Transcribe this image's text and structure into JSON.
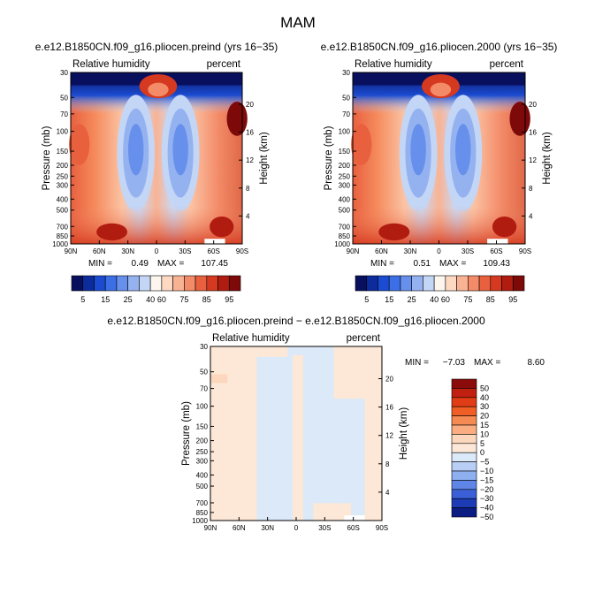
{
  "figure": {
    "title": "MAM"
  },
  "chart_data": [
    {
      "type": "heatmap",
      "title": "e.e12.B1850CN.f09_g16.pliocen.preind (yrs 16−35)",
      "left_label": "Relative humidity",
      "right_label": "percent",
      "ylabel": "Pressure (mb)",
      "ylabel_right": "Height (km)",
      "x_ticks": [
        "90N",
        "60N",
        "30N",
        "0",
        "30S",
        "60S",
        "90S"
      ],
      "y_ticks": [
        "30",
        "50",
        "70",
        "100",
        "150",
        "200",
        "250",
        "300",
        "400",
        "500",
        "700",
        "850",
        "1000"
      ],
      "height_ticks": [
        "20",
        "16",
        "12",
        "8",
        "4"
      ],
      "min_label": "MIN =",
      "min_value": "0.49",
      "max_label": "MAX =",
      "max_value": "107.45",
      "colorbar_labels": [
        "5",
        "15",
        "25",
        "40",
        "60",
        "75",
        "85",
        "95"
      ]
    },
    {
      "type": "heatmap",
      "title": "e.e12.B1850CN.f09_g16.pliocen.2000 (yrs 16−35)",
      "left_label": "Relative humidity",
      "right_label": "percent",
      "ylabel": "Pressure (mb)",
      "ylabel_right": "Height (km)",
      "x_ticks": [
        "90N",
        "60N",
        "30N",
        "0",
        "30S",
        "60S",
        "90S"
      ],
      "y_ticks": [
        "30",
        "50",
        "70",
        "100",
        "150",
        "200",
        "250",
        "300",
        "400",
        "500",
        "700",
        "850",
        "1000"
      ],
      "height_ticks": [
        "20",
        "16",
        "12",
        "8",
        "4"
      ],
      "min_label": "MIN =",
      "min_value": "0.51",
      "max_label": "MAX =",
      "max_value": "109.43",
      "colorbar_labels": [
        "5",
        "15",
        "25",
        "40",
        "60",
        "75",
        "85",
        "95"
      ]
    },
    {
      "type": "heatmap",
      "title": "e.e12.B1850CN.f09_g16.pliocen.preind − e.e12.B1850CN.f09_g16.pliocen.2000",
      "left_label": "Relative humidity",
      "right_label": "percent",
      "ylabel": "Pressure (mb)",
      "ylabel_right": "Height (km)",
      "x_ticks": [
        "90N",
        "60N",
        "30N",
        "0",
        "30S",
        "60S",
        "90S"
      ],
      "y_ticks": [
        "30",
        "50",
        "70",
        "100",
        "150",
        "200",
        "250",
        "300",
        "400",
        "500",
        "700",
        "850",
        "1000"
      ],
      "height_ticks": [
        "20",
        "16",
        "12",
        "8",
        "4"
      ],
      "min_label": "MIN =",
      "min_value": "−7.03",
      "max_label": "MAX =",
      "max_value": "8.60",
      "colorbar_labels": [
        "50",
        "40",
        "30",
        "20",
        "15",
        "10",
        "5",
        "0",
        "−5",
        "−10",
        "−15",
        "−20",
        "−30",
        "−40",
        "−50"
      ]
    }
  ],
  "colors": {
    "abs_scale": [
      "#08105e",
      "#0c2b9c",
      "#1a4bd0",
      "#3c6fe6",
      "#6690ec",
      "#95b2f0",
      "#c4d6f6",
      "#fdf6ee",
      "#fdd9c2",
      "#f9b394",
      "#f38b68",
      "#e9603f",
      "#d5391f",
      "#b01c10",
      "#7d0a08"
    ],
    "diff_scale": [
      "#8b0b0b",
      "#c0200f",
      "#e03c15",
      "#ef5e25",
      "#f58a52",
      "#f9ad80",
      "#fcd7bd",
      "#fde8d7",
      "#dce9f9",
      "#b8cef5",
      "#8eaff0",
      "#5f86e6",
      "#3a5fd6",
      "#1c3bb5",
      "#0b1c83"
    ]
  }
}
